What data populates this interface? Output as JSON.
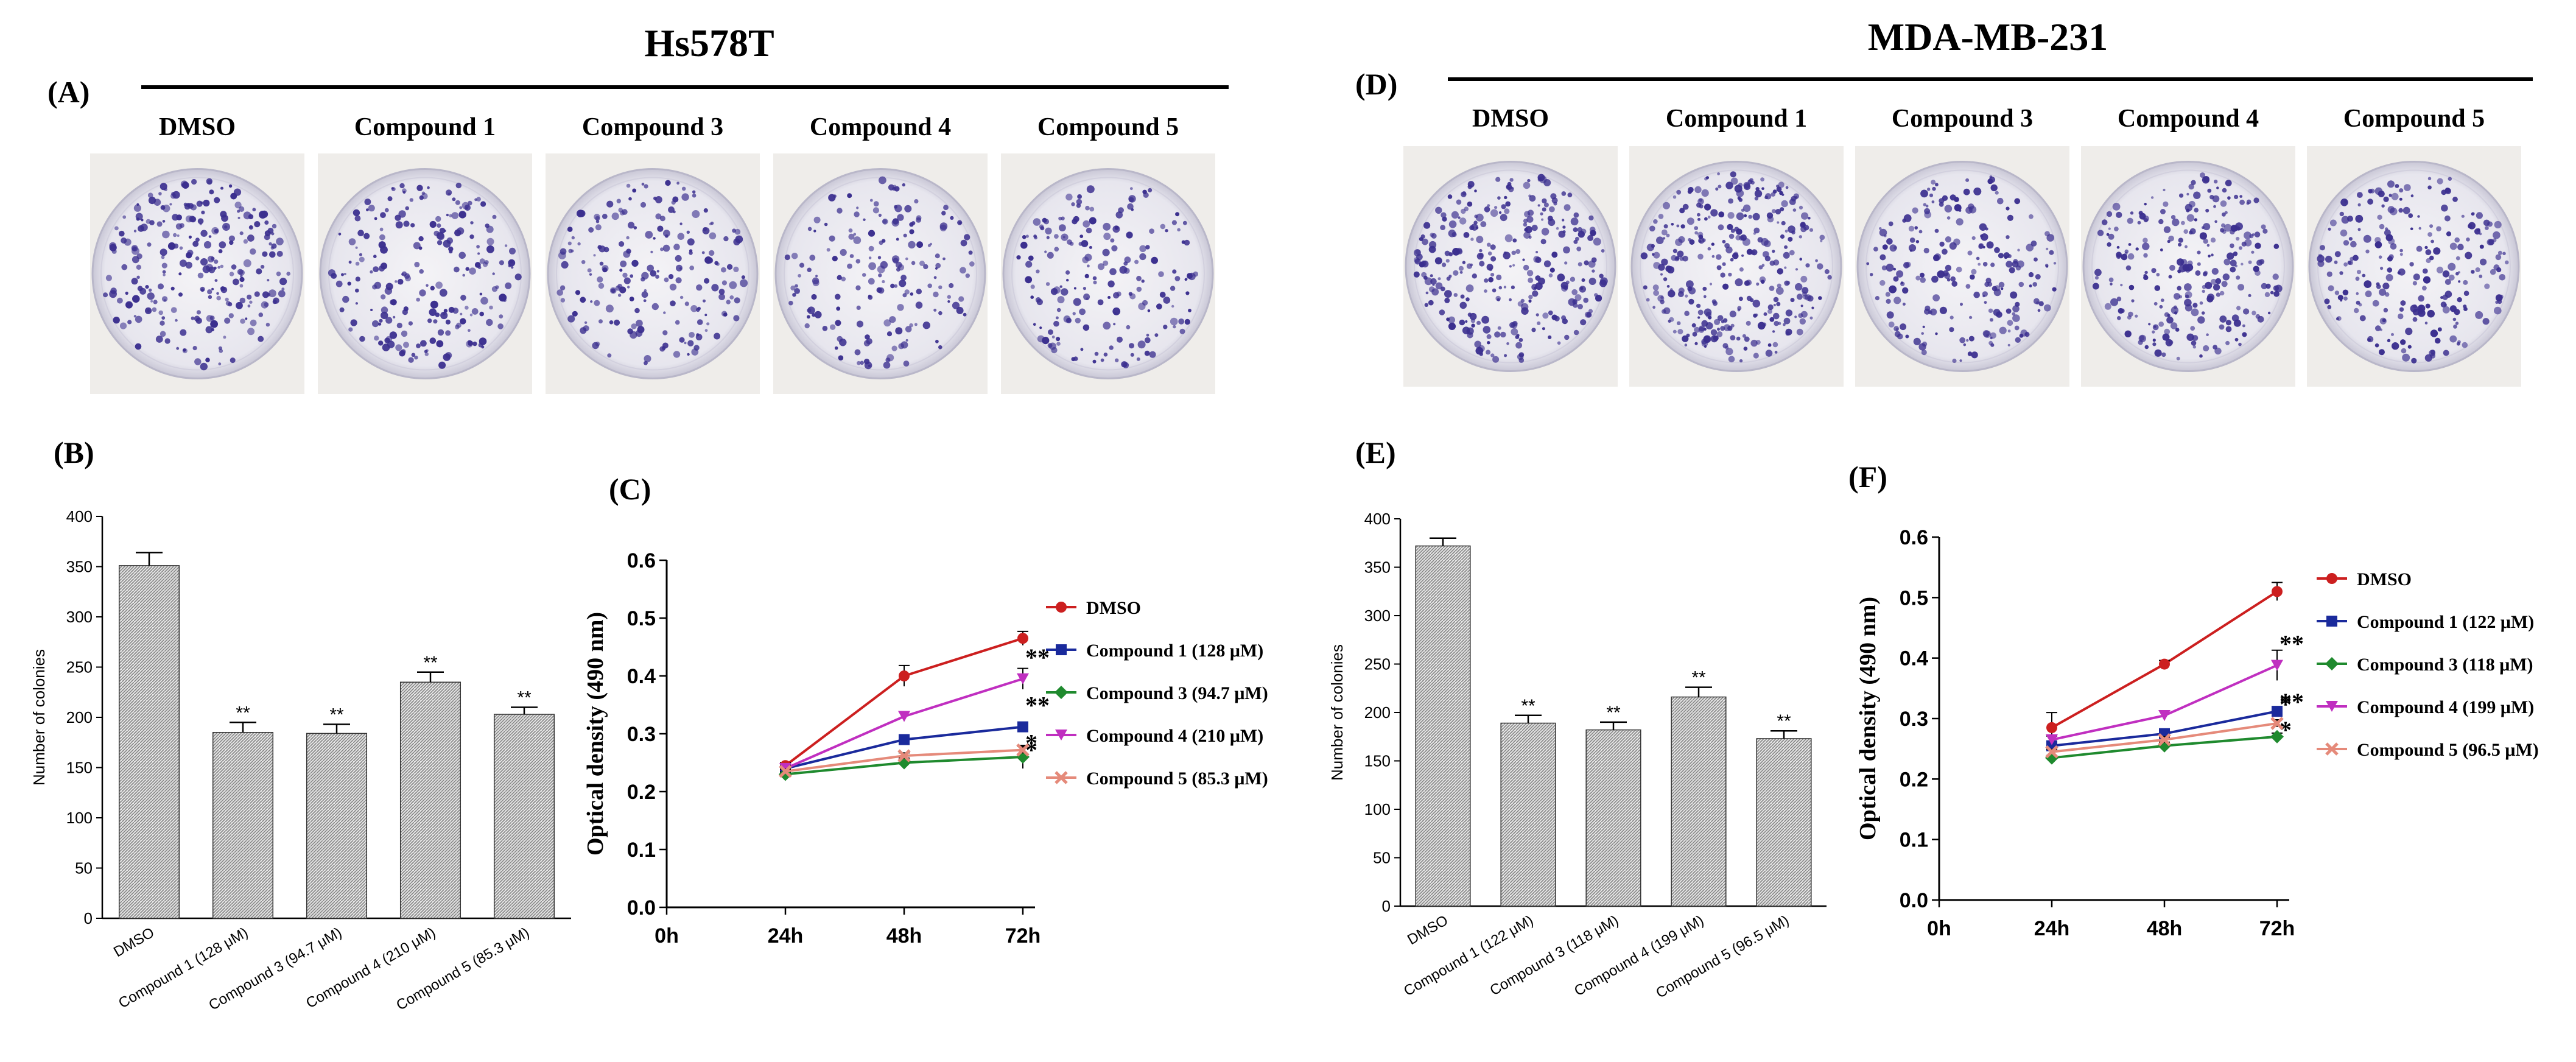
{
  "panels": {
    "hs": {
      "cell_line": "Hs578T",
      "plate_label": "(A)",
      "bar_label": "(B)",
      "line_label": "(C)",
      "plates": [
        "DMSO",
        "Compound 1",
        "Compound 3",
        "Compound 4",
        "Compound 5"
      ]
    },
    "mda": {
      "cell_line": "MDA-MB-231",
      "plate_label": "(D)",
      "bar_label": "(E)",
      "line_label": "(F)",
      "plates": [
        "DMSO",
        "Compound 1",
        "Compound 3",
        "Compound 4",
        "Compound 5"
      ]
    }
  },
  "colors": {
    "plate_bg": "#efedea",
    "plate_fill": "#e9e8ef",
    "colony": "#3b2f8f",
    "bar_fill": "#e4e4e4",
    "bar_hatch": "#7a7a7a"
  },
  "chart_data": [
    {
      "id": "B",
      "type": "bar",
      "title": "",
      "ylabel": "Number of colonies",
      "ylim": [
        0,
        400
      ],
      "yticks": [
        "0",
        "50",
        "100",
        "150",
        "200",
        "250",
        "300",
        "350",
        "400"
      ],
      "categories": [
        "DMSO",
        "Compound 1 (128 μM)",
        "Compound 3 (94.7 μM)",
        "Compound 4 (210 μM)",
        "Compound 5 (85.3 μM)"
      ],
      "values": [
        351,
        185,
        184,
        235,
        203
      ],
      "errors": [
        13,
        10,
        9,
        10,
        7
      ],
      "significance": [
        "",
        "**",
        "**",
        "**",
        "**"
      ]
    },
    {
      "id": "C",
      "type": "line",
      "ylabel": "Optical density (490 nm)",
      "ylim": [
        0,
        0.6
      ],
      "yticks": [
        "0.0",
        "0.1",
        "0.2",
        "0.3",
        "0.4",
        "0.5",
        "0.6"
      ],
      "x": [
        "0h",
        "24h",
        "48h",
        "72h"
      ],
      "series": [
        {
          "name": "DMSO",
          "color": "#cc1f1f",
          "marker": "circle",
          "values": [
            null,
            0.245,
            0.4,
            0.465
          ],
          "errors": [
            0,
            0.005,
            0.018,
            0.012
          ],
          "sig": ""
        },
        {
          "name": "Compound 1 (128 μM)",
          "color": "#1a2a9c",
          "marker": "square",
          "values": [
            null,
            0.24,
            0.29,
            0.312
          ],
          "errors": [
            0,
            0.005,
            0.006,
            0.006
          ],
          "sig": "**"
        },
        {
          "name": "Compound 3 (94.7 μM)",
          "color": "#1f8a2e",
          "marker": "diamond",
          "values": [
            null,
            0.23,
            0.25,
            0.26
          ],
          "errors": [
            0,
            0.004,
            0.008,
            0.02
          ],
          "sig": "*"
        },
        {
          "name": "Compound 4 (210 μM)",
          "color": "#c02fc0",
          "marker": "triangle-down",
          "values": [
            null,
            0.24,
            0.33,
            0.395
          ],
          "errors": [
            0,
            0.005,
            0.008,
            0.018
          ],
          "sig": "**"
        },
        {
          "name": "Compound 5 (85.3 μM)",
          "color": "#e58a7a",
          "marker": "x",
          "values": [
            null,
            0.235,
            0.262,
            0.272
          ],
          "errors": [
            0,
            0.004,
            0.005,
            0.006
          ],
          "sig": "*"
        }
      ]
    },
    {
      "id": "E",
      "type": "bar",
      "title": "",
      "ylabel": "Number of colonies",
      "ylim": [
        0,
        400
      ],
      "yticks": [
        "0",
        "50",
        "100",
        "150",
        "200",
        "250",
        "300",
        "350",
        "400"
      ],
      "categories": [
        "DMSO",
        "Compound 1 (122 μM)",
        "Compound 3 (118 μM)",
        "Compound 4 (199 μM)",
        "Compound 5 (96.5 μM)"
      ],
      "values": [
        372,
        189,
        182,
        216,
        173
      ],
      "errors": [
        8,
        8,
        8,
        10,
        8
      ],
      "significance": [
        "",
        "**",
        "**",
        "**",
        "**"
      ]
    },
    {
      "id": "F",
      "type": "line",
      "ylabel": "Optical density (490 nm)",
      "ylim": [
        0,
        0.6
      ],
      "yticks": [
        "0.0",
        "0.1",
        "0.2",
        "0.3",
        "0.4",
        "0.5",
        "0.6"
      ],
      "x": [
        "0h",
        "24h",
        "48h",
        "72h"
      ],
      "series": [
        {
          "name": "DMSO",
          "color": "#cc1f1f",
          "marker": "circle",
          "values": [
            null,
            0.285,
            0.39,
            0.51
          ],
          "errors": [
            0,
            0.025,
            0.006,
            0.015
          ],
          "sig": ""
        },
        {
          "name": "Compound 1 (122 μM)",
          "color": "#1a2a9c",
          "marker": "square",
          "values": [
            null,
            0.255,
            0.275,
            0.312
          ],
          "errors": [
            0,
            0.005,
            0.006,
            0.006
          ],
          "sig": "*"
        },
        {
          "name": "Compound 3 (118 μM)",
          "color": "#1f8a2e",
          "marker": "diamond",
          "values": [
            null,
            0.235,
            0.255,
            0.27
          ],
          "errors": [
            0,
            0.004,
            0.006,
            0.006
          ],
          "sig": "*"
        },
        {
          "name": "Compound 4 (199 μM)",
          "color": "#c02fc0",
          "marker": "triangle-down",
          "values": [
            null,
            0.265,
            0.305,
            0.388
          ],
          "errors": [
            0,
            0.006,
            0.008,
            0.025
          ],
          "sig": "**"
        },
        {
          "name": "Compound 5 (96.5 μM)",
          "color": "#e58a7a",
          "marker": "x",
          "values": [
            null,
            0.245,
            0.265,
            0.292
          ],
          "errors": [
            0,
            0.004,
            0.005,
            0.006
          ],
          "sig": "**"
        }
      ]
    }
  ]
}
